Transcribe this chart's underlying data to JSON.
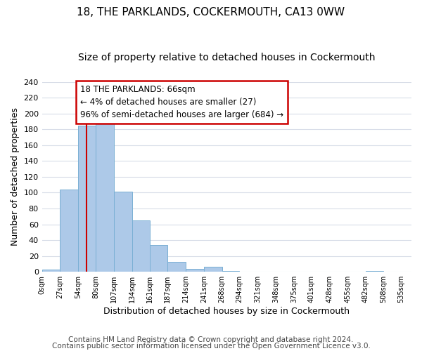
{
  "title": "18, THE PARKLANDS, COCKERMOUTH, CA13 0WW",
  "subtitle": "Size of property relative to detached houses in Cockermouth",
  "xlabel": "Distribution of detached houses by size in Cockermouth",
  "ylabel": "Number of detached properties",
  "bar_left_edges": [
    0,
    27,
    54,
    80,
    107,
    134,
    161,
    187,
    214,
    241,
    268,
    294,
    321,
    348,
    375,
    401,
    428,
    455,
    482,
    508
  ],
  "bar_widths": [
    27,
    27,
    26,
    27,
    27,
    27,
    26,
    27,
    27,
    27,
    26,
    27,
    27,
    27,
    26,
    27,
    27,
    27,
    26,
    27
  ],
  "bar_heights": [
    3,
    104,
    185,
    193,
    101,
    65,
    34,
    13,
    4,
    6,
    1,
    0,
    0,
    0,
    0,
    0,
    0,
    0,
    1,
    0
  ],
  "bar_color": "#adc9e8",
  "bar_edgecolor": "#7aafd4",
  "grid_color": "#d8dde8",
  "property_line_x": 66,
  "property_line_color": "#cc0000",
  "annotation_text": "18 THE PARKLANDS: 66sqm\n← 4% of detached houses are smaller (27)\n96% of semi-detached houses are larger (684) →",
  "annotation_box_edgecolor": "#cc0000",
  "annotation_box_facecolor": "#ffffff",
  "xtick_labels": [
    "0sqm",
    "27sqm",
    "54sqm",
    "80sqm",
    "107sqm",
    "134sqm",
    "161sqm",
    "187sqm",
    "214sqm",
    "241sqm",
    "268sqm",
    "294sqm",
    "321sqm",
    "348sqm",
    "375sqm",
    "401sqm",
    "428sqm",
    "455sqm",
    "482sqm",
    "508sqm",
    "535sqm"
  ],
  "xtick_positions": [
    0,
    27,
    54,
    80,
    107,
    134,
    161,
    187,
    214,
    241,
    268,
    294,
    321,
    348,
    375,
    401,
    428,
    455,
    482,
    508,
    535
  ],
  "ylim": [
    0,
    240
  ],
  "xlim": [
    0,
    550
  ],
  "ytick_values": [
    0,
    20,
    40,
    60,
    80,
    100,
    120,
    140,
    160,
    180,
    200,
    220,
    240
  ],
  "footer_line1": "Contains HM Land Registry data © Crown copyright and database right 2024.",
  "footer_line2": "Contains public sector information licensed under the Open Government Licence v3.0.",
  "background_color": "#ffffff",
  "title_fontsize": 11,
  "subtitle_fontsize": 10,
  "annotation_fontsize": 8.5,
  "footer_fontsize": 7.5
}
